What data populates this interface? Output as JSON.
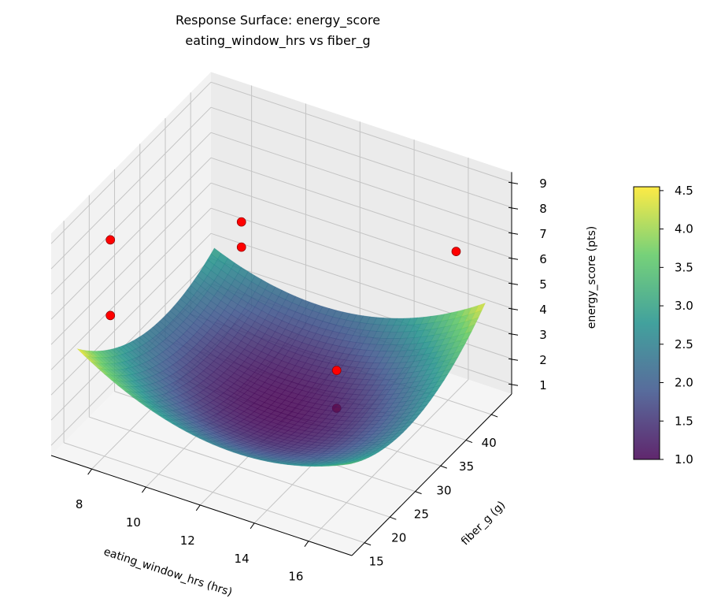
{
  "chart_data": {
    "type": "surface",
    "title": [
      "Response Surface: energy_score",
      "eating_window_hrs vs fiber_g"
    ],
    "xlabel": "eating_window_hrs (hrs)",
    "ylabel": "fiber_g (g)",
    "zlabel": "energy_score (pts)",
    "xlim": [
      6.5,
      17.6
    ],
    "ylim": [
      12.5,
      44
    ],
    "zlim": [
      0.6,
      9.4
    ],
    "xticks": [
      "8",
      "10",
      "12",
      "14",
      "16"
    ],
    "yticks": [
      "15",
      "20",
      "25",
      "30",
      "35",
      "40"
    ],
    "zticks": [
      "1",
      "2",
      "3",
      "4",
      "5",
      "6",
      "7",
      "8",
      "9"
    ],
    "grid": true,
    "surface": {
      "colormap": "viridis",
      "x": [
        7,
        12,
        17
      ],
      "y": [
        15,
        28.5,
        42
      ],
      "z": [
        [
          4.5,
          2.4,
          3.0
        ],
        [
          2.5,
          1.0,
          2.2
        ],
        [
          3.5,
          2.6,
          4.4
        ]
      ]
    },
    "points": {
      "color": "#ff0000",
      "data": [
        [
          7,
          21.5,
          7.5
        ],
        [
          7,
          21.5,
          4.5
        ],
        [
          8,
          42,
          4.4
        ],
        [
          8,
          42,
          3.4
        ],
        [
          16.3,
          40,
          6.6
        ],
        [
          13.2,
          33,
          2.2
        ],
        [
          13.2,
          33,
          0.7
        ]
      ]
    },
    "colorbar": {
      "range": [
        1.0,
        4.55
      ],
      "ticks": [
        "1.0",
        "1.5",
        "2.0",
        "2.5",
        "3.0",
        "3.5",
        "4.0",
        "4.5"
      ],
      "location": "right"
    }
  }
}
